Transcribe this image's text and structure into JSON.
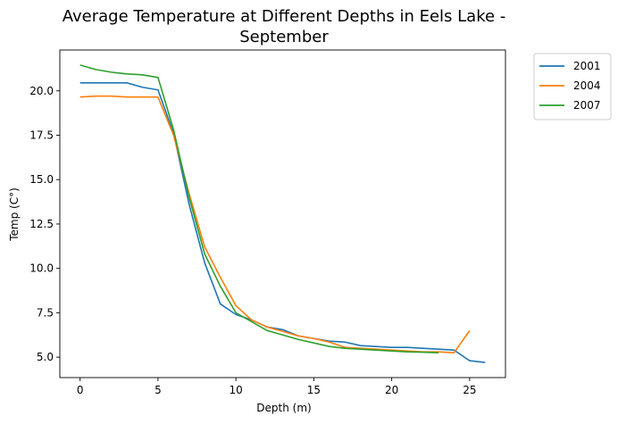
{
  "chart_data": {
    "type": "line",
    "title_lines": [
      "Average Temperature at Different Depths in Eels Lake -",
      "September"
    ],
    "xlabel": "Depth (m)",
    "ylabel": "Temp (C°)",
    "xlim": [
      -1.3,
      27.3
    ],
    "ylim": [
      3.85,
      22.3
    ],
    "xticks": [
      0,
      5,
      10,
      15,
      20,
      25
    ],
    "yticks": [
      5.0,
      7.5,
      10.0,
      12.5,
      15.0,
      17.5,
      20.0
    ],
    "xtick_labels": [
      "0",
      "5",
      "10",
      "15",
      "20",
      "25"
    ],
    "ytick_labels": [
      "5.0",
      "7.5",
      "10.0",
      "12.5",
      "15.0",
      "17.5",
      "20.0"
    ],
    "legend_position": "outside-top-right",
    "grid": false,
    "series": [
      {
        "name": "2001",
        "color": "#1f77b4",
        "x": [
          0,
          1,
          2,
          3,
          4,
          5,
          6,
          7,
          8,
          9,
          10,
          11,
          12,
          13,
          14,
          15,
          16,
          17,
          18,
          19,
          20,
          21,
          22,
          23,
          24,
          25,
          26
        ],
        "y": [
          20.45,
          20.45,
          20.45,
          20.45,
          20.2,
          20.05,
          17.6,
          13.6,
          10.3,
          8.0,
          7.4,
          7.1,
          6.7,
          6.55,
          6.2,
          6.05,
          5.9,
          5.85,
          5.65,
          5.6,
          5.55,
          5.55,
          5.5,
          5.45,
          5.4,
          4.8,
          4.7
        ]
      },
      {
        "name": "2004",
        "color": "#ff7f0e",
        "x": [
          0,
          1,
          2,
          3,
          4,
          5,
          6,
          7,
          8,
          9,
          10,
          11,
          12,
          13,
          14,
          15,
          16,
          17,
          18,
          19,
          20,
          21,
          22,
          23,
          24,
          25
        ],
        "y": [
          19.65,
          19.7,
          19.7,
          19.65,
          19.65,
          19.65,
          17.5,
          14.2,
          11.2,
          9.5,
          7.9,
          7.1,
          6.7,
          6.45,
          6.2,
          6.05,
          5.85,
          5.55,
          5.5,
          5.45,
          5.4,
          5.35,
          5.3,
          5.3,
          5.25,
          6.5
        ]
      },
      {
        "name": "2007",
        "color": "#2ca02c",
        "x": [
          0,
          1,
          2,
          3,
          4,
          5,
          6,
          7,
          8,
          9,
          10,
          11,
          12,
          13,
          14,
          15,
          16,
          17,
          18,
          19,
          20,
          21,
          22,
          23
        ],
        "y": [
          21.45,
          21.2,
          21.05,
          20.95,
          20.9,
          20.75,
          17.8,
          14.0,
          10.8,
          9.0,
          7.5,
          7.0,
          6.5,
          6.25,
          6.0,
          5.8,
          5.6,
          5.5,
          5.45,
          5.4,
          5.35,
          5.3,
          5.28,
          5.25
        ]
      }
    ]
  }
}
